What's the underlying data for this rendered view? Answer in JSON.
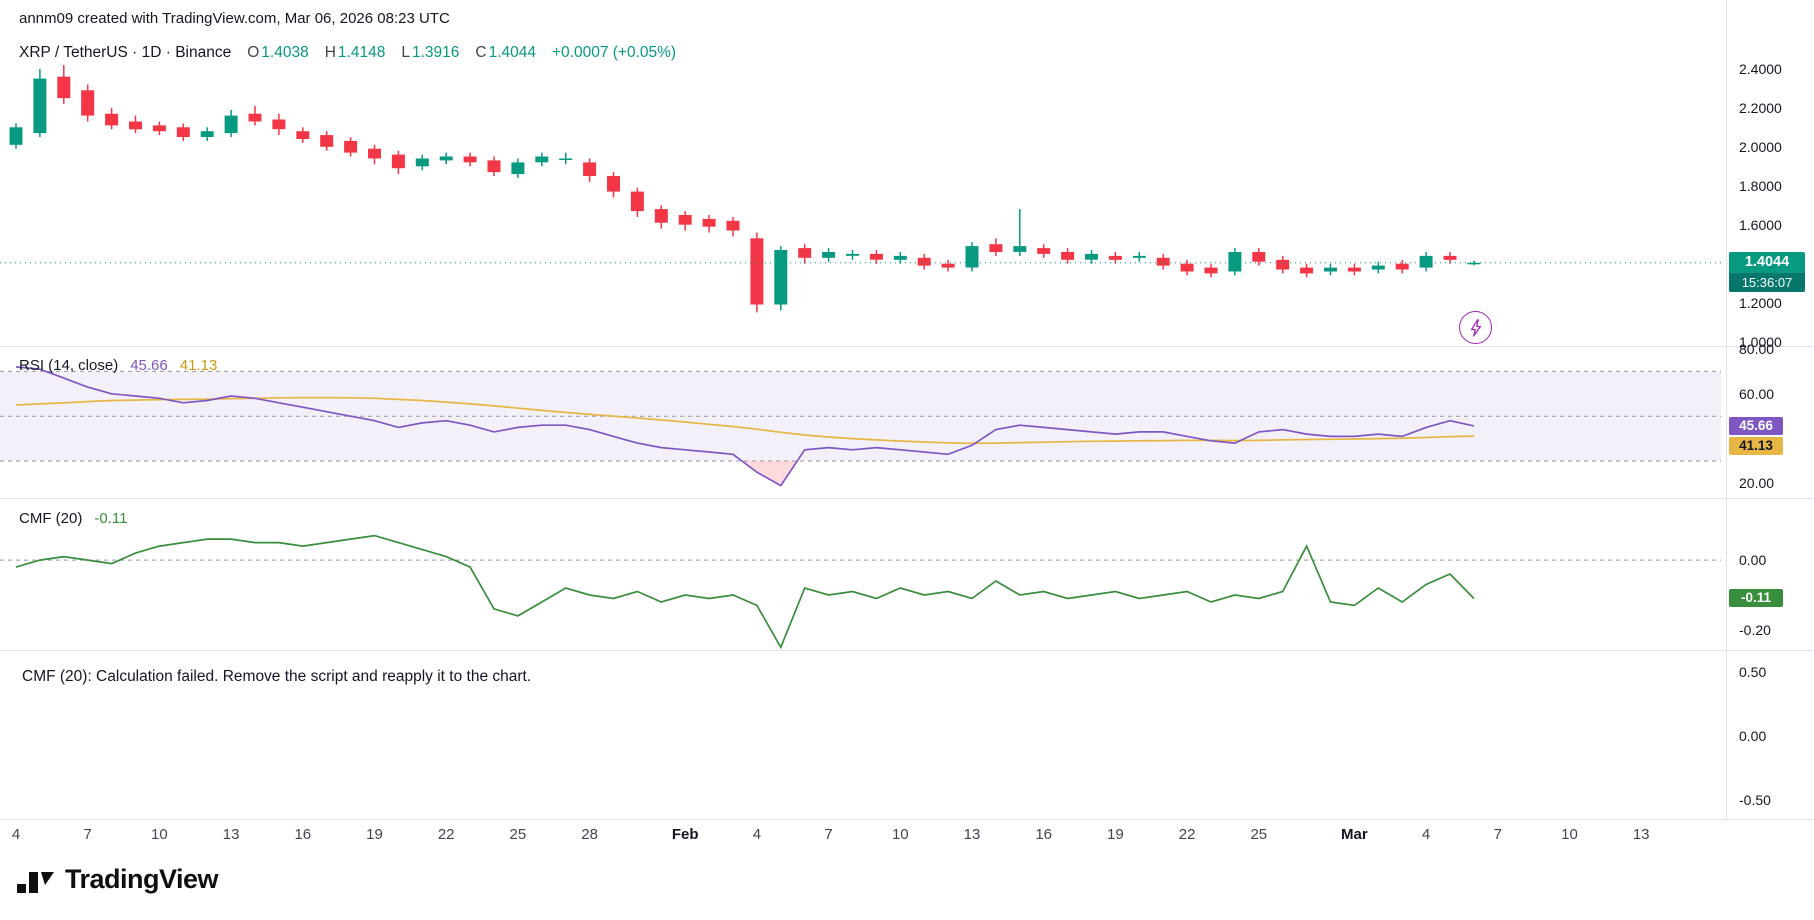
{
  "note": "annm09 created with TradingView.com, Mar 06, 2026 08:23 UTC",
  "symbol": {
    "title": "XRP / TetherUS · 1D · Binance",
    "ohlc": [
      {
        "k": "O",
        "v": "1.4038"
      },
      {
        "k": "H",
        "v": "1.4148"
      },
      {
        "k": "L",
        "v": "1.3916"
      },
      {
        "k": "C",
        "v": "1.4044"
      }
    ],
    "change": "+0.0007 (+0.05%)"
  },
  "panes_legend": {
    "rsi": {
      "title": "RSI (14, close)",
      "v1": "45.66",
      "v2": "41.13"
    },
    "cmf": {
      "title": "CMF (20)",
      "value": "-0.11"
    },
    "error": {
      "message": "CMF (20): Calculation failed. Remove the script and reapply it to the chart."
    }
  },
  "badges": {
    "price": "1.4044",
    "countdown": "15:36:07",
    "rsi": "45.66",
    "rsi_ma": "41.13",
    "cmf": "-0.11"
  },
  "colors": {
    "up": "#089981",
    "down": "#f23645",
    "countdown_bg": "#07776b",
    "rsi": "#7e57c2",
    "rsi_band": "rgba(126,87,194,0.09)",
    "rsi_oversold_fill": "rgba(242,54,69,0.18)",
    "rsi_ma": "#e8b644",
    "rsi_ma_text": "#c99b12",
    "cmf": "#388e3c",
    "lightning": "#9c27b0",
    "grid_dash": "#9598a1"
  },
  "logo": {
    "text": "TradingView"
  },
  "time_axis": {
    "ticks": [
      {
        "t": "4",
        "i": 0
      },
      {
        "t": "7",
        "i": 3
      },
      {
        "t": "10",
        "i": 6
      },
      {
        "t": "13",
        "i": 9
      },
      {
        "t": "16",
        "i": 12
      },
      {
        "t": "19",
        "i": 15
      },
      {
        "t": "22",
        "i": 18
      },
      {
        "t": "25",
        "i": 21
      },
      {
        "t": "28",
        "i": 24
      },
      {
        "t": "Feb",
        "i": 28,
        "b": true
      },
      {
        "t": "4",
        "i": 31
      },
      {
        "t": "7",
        "i": 34
      },
      {
        "t": "10",
        "i": 37
      },
      {
        "t": "13",
        "i": 40
      },
      {
        "t": "16",
        "i": 43
      },
      {
        "t": "19",
        "i": 46
      },
      {
        "t": "22",
        "i": 49
      },
      {
        "t": "25",
        "i": 52
      },
      {
        "t": "Mar",
        "i": 56,
        "b": true
      },
      {
        "t": "4",
        "i": 59
      },
      {
        "t": "7",
        "i": 62
      },
      {
        "t": "10",
        "i": 65
      },
      {
        "t": "13",
        "i": 68
      }
    ]
  },
  "chart_data": [
    {
      "type": "candlestick",
      "title": "XRP / TetherUS 1D Binance",
      "last_price": 1.4044,
      "countdown": "15:36:07",
      "y_ticks": [
        {
          "v": 2.4,
          "t": "2.4000"
        },
        {
          "v": 2.2,
          "t": "2.2000"
        },
        {
          "v": 2.0,
          "t": "2.0000"
        },
        {
          "v": 1.8,
          "t": "1.8000"
        },
        {
          "v": 1.6,
          "t": "1.6000"
        },
        {
          "v": 1.2,
          "t": "1.2000"
        },
        {
          "v": 1.0,
          "t": "1.0000"
        }
      ],
      "candles": [
        [
          2.01,
          2.12,
          1.99,
          2.1
        ],
        [
          2.07,
          2.4,
          2.05,
          2.35
        ],
        [
          2.36,
          2.42,
          2.22,
          2.25
        ],
        [
          2.29,
          2.32,
          2.13,
          2.16
        ],
        [
          2.17,
          2.2,
          2.09,
          2.11
        ],
        [
          2.13,
          2.16,
          2.07,
          2.09
        ],
        [
          2.11,
          2.13,
          2.06,
          2.08
        ],
        [
          2.1,
          2.12,
          2.03,
          2.05
        ],
        [
          2.05,
          2.1,
          2.03,
          2.08
        ],
        [
          2.07,
          2.19,
          2.05,
          2.16
        ],
        [
          2.17,
          2.21,
          2.11,
          2.13
        ],
        [
          2.14,
          2.17,
          2.06,
          2.09
        ],
        [
          2.08,
          2.1,
          2.02,
          2.04
        ],
        [
          2.06,
          2.08,
          1.98,
          2.0
        ],
        [
          2.03,
          2.05,
          1.95,
          1.97
        ],
        [
          1.99,
          2.01,
          1.91,
          1.94
        ],
        [
          1.96,
          1.98,
          1.86,
          1.89
        ],
        [
          1.9,
          1.96,
          1.88,
          1.94
        ],
        [
          1.93,
          1.97,
          1.91,
          1.95
        ],
        [
          1.95,
          1.97,
          1.9,
          1.92
        ],
        [
          1.93,
          1.95,
          1.85,
          1.87
        ],
        [
          1.86,
          1.94,
          1.84,
          1.92
        ],
        [
          1.92,
          1.97,
          1.9,
          1.95
        ],
        [
          1.94,
          1.97,
          1.91,
          1.94
        ],
        [
          1.92,
          1.94,
          1.82,
          1.85
        ],
        [
          1.85,
          1.87,
          1.74,
          1.77
        ],
        [
          1.77,
          1.79,
          1.64,
          1.67
        ],
        [
          1.68,
          1.7,
          1.58,
          1.61
        ],
        [
          1.65,
          1.67,
          1.57,
          1.6
        ],
        [
          1.63,
          1.65,
          1.56,
          1.59
        ],
        [
          1.62,
          1.64,
          1.54,
          1.57
        ],
        [
          1.53,
          1.56,
          1.15,
          1.19
        ],
        [
          1.19,
          1.49,
          1.16,
          1.47
        ],
        [
          1.48,
          1.5,
          1.4,
          1.43
        ],
        [
          1.43,
          1.48,
          1.41,
          1.46
        ],
        [
          1.44,
          1.47,
          1.42,
          1.45
        ],
        [
          1.45,
          1.47,
          1.4,
          1.42
        ],
        [
          1.42,
          1.46,
          1.4,
          1.44
        ],
        [
          1.43,
          1.45,
          1.37,
          1.39
        ],
        [
          1.4,
          1.42,
          1.36,
          1.38
        ],
        [
          1.38,
          1.51,
          1.36,
          1.49
        ],
        [
          1.5,
          1.53,
          1.44,
          1.46
        ],
        [
          1.46,
          1.68,
          1.44,
          1.49
        ],
        [
          1.48,
          1.5,
          1.43,
          1.45
        ],
        [
          1.46,
          1.48,
          1.4,
          1.42
        ],
        [
          1.42,
          1.47,
          1.4,
          1.45
        ],
        [
          1.44,
          1.46,
          1.4,
          1.42
        ],
        [
          1.43,
          1.46,
          1.41,
          1.44
        ],
        [
          1.43,
          1.45,
          1.37,
          1.39
        ],
        [
          1.4,
          1.42,
          1.34,
          1.36
        ],
        [
          1.38,
          1.4,
          1.33,
          1.35
        ],
        [
          1.36,
          1.48,
          1.34,
          1.46
        ],
        [
          1.46,
          1.48,
          1.39,
          1.41
        ],
        [
          1.42,
          1.44,
          1.35,
          1.37
        ],
        [
          1.38,
          1.4,
          1.33,
          1.35
        ],
        [
          1.36,
          1.4,
          1.34,
          1.38
        ],
        [
          1.38,
          1.4,
          1.34,
          1.36
        ],
        [
          1.37,
          1.41,
          1.35,
          1.39
        ],
        [
          1.4,
          1.42,
          1.35,
          1.37
        ],
        [
          1.38,
          1.46,
          1.36,
          1.44
        ],
        [
          1.44,
          1.46,
          1.4,
          1.42
        ],
        [
          1.4038,
          1.4148,
          1.3916,
          1.4044
        ]
      ]
    },
    {
      "type": "line",
      "title": "RSI (14, close)",
      "levels": [
        70,
        50,
        30
      ],
      "band": [
        30,
        70
      ],
      "last": [
        45.66,
        41.13
      ],
      "y_ticks": [
        {
          "v": 80,
          "t": "80.00"
        },
        {
          "v": 60,
          "t": "60.00"
        },
        {
          "v": 20,
          "t": "20.00"
        }
      ],
      "series": [
        {
          "name": "RSI",
          "color": "#7e57c2",
          "values": [
            72,
            71,
            67,
            63,
            60,
            59,
            58,
            56,
            57,
            59,
            58,
            56,
            54,
            52,
            50,
            48,
            45,
            47,
            48,
            46,
            43,
            45,
            46,
            46,
            44,
            41,
            38,
            36,
            35,
            34,
            33,
            25,
            19,
            35,
            36,
            35,
            36,
            35,
            34,
            33,
            37,
            44,
            46,
            45,
            44,
            43,
            42,
            43,
            43,
            41,
            39,
            38,
            43,
            44,
            42,
            41,
            41,
            42,
            41,
            45,
            48,
            45.66
          ]
        },
        {
          "name": "RSI-based MA",
          "color": "#e8b644",
          "values": [
            55,
            55.5,
            56,
            56.5,
            57,
            57.2,
            57.4,
            57.5,
            57.6,
            57.8,
            58,
            58.2,
            58.3,
            58.3,
            58.2,
            58,
            57.5,
            57,
            56.3,
            55.5,
            54.6,
            53.6,
            52.6,
            51.7,
            50.8,
            50,
            49.2,
            48.3,
            47.4,
            46.4,
            45.4,
            44.2,
            42.8,
            41.6,
            40.7,
            40,
            39.4,
            38.9,
            38.5,
            38.1,
            37.9,
            38,
            38.2,
            38.4,
            38.6,
            38.8,
            38.9,
            39,
            39.1,
            39.2,
            39.2,
            39.1,
            39.2,
            39.4,
            39.6,
            39.7,
            39.8,
            40,
            40.2,
            40.5,
            40.9,
            41.13
          ]
        }
      ]
    },
    {
      "type": "line",
      "title": "CMF (20)",
      "zero_line": 0,
      "last": -0.11,
      "y_ticks": [
        {
          "v": 0,
          "t": "0.00"
        },
        {
          "v": -0.2,
          "t": "-0.20"
        }
      ],
      "series": [
        {
          "name": "CMF",
          "color": "#388e3c",
          "values": [
            -0.02,
            0.0,
            0.01,
            0.0,
            -0.01,
            0.02,
            0.04,
            0.05,
            0.06,
            0.06,
            0.05,
            0.05,
            0.04,
            0.05,
            0.06,
            0.07,
            0.05,
            0.03,
            0.01,
            -0.02,
            -0.14,
            -0.16,
            -0.12,
            -0.08,
            -0.1,
            -0.11,
            -0.09,
            -0.12,
            -0.1,
            -0.11,
            -0.1,
            -0.13,
            -0.25,
            -0.08,
            -0.1,
            -0.09,
            -0.11,
            -0.08,
            -0.1,
            -0.09,
            -0.11,
            -0.06,
            -0.1,
            -0.09,
            -0.11,
            -0.1,
            -0.09,
            -0.11,
            -0.1,
            -0.09,
            -0.12,
            -0.1,
            -0.11,
            -0.09,
            0.04,
            -0.12,
            -0.13,
            -0.08,
            -0.12,
            -0.07,
            -0.04,
            -0.11
          ]
        }
      ]
    },
    {
      "type": "error",
      "title": "CMF (20)",
      "message": "CMF (20): Calculation failed. Remove the script and reapply it to the chart.",
      "y_ticks": [
        {
          "v": 0.5,
          "t": "0.50"
        },
        {
          "v": 0,
          "t": "0.00"
        },
        {
          "v": -0.5,
          "t": "-0.50"
        }
      ]
    }
  ]
}
